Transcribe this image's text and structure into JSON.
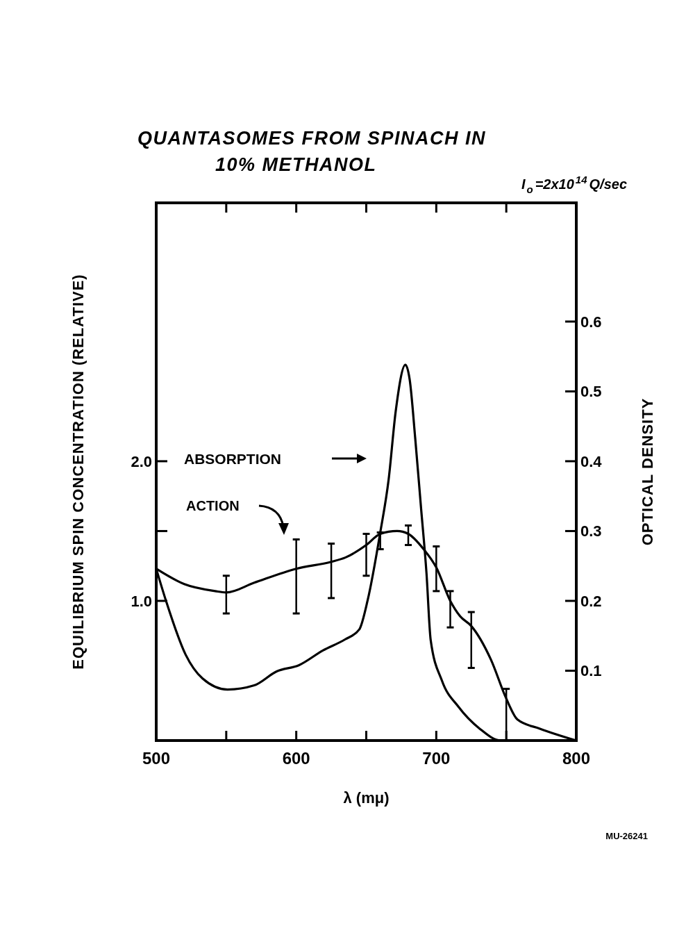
{
  "chart_data": {
    "type": "line",
    "title": "QUANTASOMES FROM SPINACH IN 10% METHANOL",
    "xlabel": "λ (mμ)",
    "ylabel": "EQUILIBRIUM SPIN CONCENTRATION (RELATIVE)",
    "y2label": "OPTICAL DENSITY",
    "annotations": [
      "I$_{o}$=2x10$^{14}$Q/sec",
      "ABSORPTION",
      "ACTION",
      "MU-26241"
    ],
    "xlim": [
      500,
      800
    ],
    "xticks": [
      500,
      {
        "value": 550,
        "label": null
      },
      600,
      {
        "value": 650,
        "label": null
      },
      700,
      {
        "value": 750,
        "label": null
      },
      800
    ],
    "ylim": [
      0,
      3.85
    ],
    "yticks": [
      {
        "value": 1.0,
        "label": "1.0"
      },
      {
        "value": 1.5,
        "label": null
      },
      {
        "value": 2.0,
        "label": "2.0"
      }
    ],
    "y2lim": [
      0,
      0.77
    ],
    "y2ticks": [
      0.1,
      0.2,
      0.3,
      0.4,
      0.5,
      0.6
    ],
    "grid": false,
    "line_style": "solid",
    "series": [
      {
        "color": "#000000",
        "x": [
          500,
          520,
          542,
          550,
          570,
          600,
          625,
          635,
          650,
          660,
          672,
          680,
          691,
          700,
          710,
          717,
          725,
          739,
          750,
          758,
          774,
          800
        ],
        "values": [
          1.23,
          1.12,
          1.07,
          1.06,
          1.13,
          1.23,
          1.28,
          1.31,
          1.4,
          1.48,
          1.5,
          1.48,
          1.37,
          1.24,
          1.0,
          0.89,
          0.82,
          0.58,
          0.3,
          0.15,
          0.085,
          0
        ],
        "errors": [
          null,
          null,
          null,
          [
            0.91,
            1.18
          ],
          null,
          [
            0.91,
            1.44
          ],
          [
            1.02,
            1.41
          ],
          null,
          [
            1.18,
            1.48
          ],
          [
            1.37,
            1.49
          ],
          null,
          [
            1.4,
            1.54
          ],
          null,
          [
            1.07,
            1.39
          ],
          [
            0.81,
            1.07
          ],
          null,
          [
            0.52,
            0.92
          ],
          null,
          [
            0,
            0.37
          ],
          null,
          null,
          null
        ]
      },
      {
        "color": "#000000",
        "axis": "y2",
        "x": [
          500,
          507,
          521,
          533,
          551,
          570,
          586,
          602,
          619,
          635,
          645,
          651,
          660,
          666,
          671,
          678,
          681,
          685,
          689,
          693,
          696,
          704,
          716,
          731,
          746,
          800
        ],
        "values": [
          0.246,
          0.2,
          0.123,
          0.089,
          0.073,
          0.079,
          0.099,
          0.108,
          0.129,
          0.145,
          0.159,
          0.201,
          0.298,
          0.374,
          0.471,
          0.538,
          0.517,
          0.432,
          0.336,
          0.24,
          0.144,
          0.086,
          0.048,
          0.017,
          0,
          0
        ]
      }
    ]
  }
}
